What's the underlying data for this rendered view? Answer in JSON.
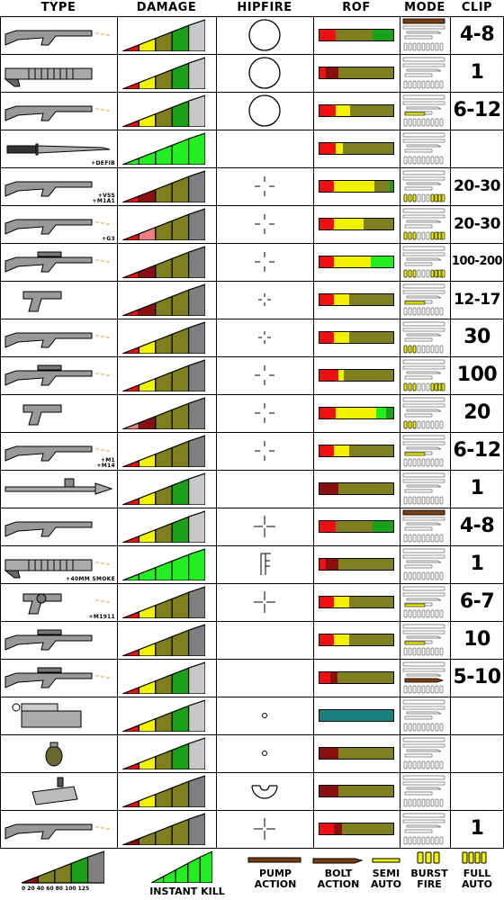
{
  "header": {
    "type": "TYPE",
    "damage": "DAMAGE",
    "hipfire": "HIPFIRE",
    "rof": "ROF",
    "mode": "MODE",
    "clip": "CLIP"
  },
  "colors": {
    "red": "#ee1111",
    "dark_red": "#8a1010",
    "pink": "#f08080",
    "yellow": "#f2f200",
    "olive": "#7f7f1f",
    "green": "#1aa01a",
    "bright_green": "#22ee22",
    "light_green": "#88f088",
    "gray": "#7f7f7f",
    "light_gray": "#c8c8c8",
    "teal": "#1a7f7f",
    "brown": "#7a3f10"
  },
  "rows": [
    {
      "weapon_icon": "shotgun-icon",
      "note": "",
      "damage": [
        "red",
        "yellow",
        "olive",
        "green",
        "light_gray"
      ],
      "hipfire": "large-circle",
      "rof": [
        [
          "red",
          22
        ],
        [
          "olive",
          50
        ],
        [
          "green",
          28
        ]
      ],
      "mode": [
        "pump"
      ],
      "clip": "4-8",
      "clip_size": "big"
    },
    {
      "weapon_icon": "auto-shotgun-icon",
      "note": "",
      "damage": [
        "red",
        "yellow",
        "olive",
        "green",
        "light_gray"
      ],
      "hipfire": "large-circle",
      "rof": [
        [
          "red",
          8
        ],
        [
          "dark_red",
          18
        ],
        [
          "olive",
          74
        ]
      ],
      "mode": [],
      "clip": "1",
      "clip_size": "big"
    },
    {
      "weapon_icon": "combat-shotgun-icon",
      "note": "",
      "damage": [
        "red",
        "yellow",
        "olive",
        "green",
        "light_gray"
      ],
      "hipfire": "large-circle",
      "rof": [
        [
          "red",
          22
        ],
        [
          "yellow",
          20
        ],
        [
          "olive",
          58
        ]
      ],
      "mode": [
        "semi"
      ],
      "clip": "6-12",
      "clip_size": "big"
    },
    {
      "weapon_icon": "knife-icon",
      "note": "+DEFIB",
      "damage": [
        "bright_green",
        "bright_green",
        "bright_green",
        "bright_green",
        "bright_green"
      ],
      "hipfire": "none",
      "rof": [
        [
          "red",
          22
        ],
        [
          "yellow",
          10
        ],
        [
          "olive",
          68
        ]
      ],
      "mode": [],
      "clip": "",
      "clip_size": "big"
    },
    {
      "weapon_icon": "smg-vss-icon",
      "note": "+VSS\n+M1A1",
      "damage": [
        "red",
        "dark_red",
        "olive",
        "olive",
        "gray"
      ],
      "hipfire": "crosshair-wide",
      "rof": [
        [
          "red",
          20
        ],
        [
          "yellow",
          55
        ],
        [
          "olive",
          20
        ],
        [
          "green",
          5
        ]
      ],
      "mode": [
        "full",
        "burst"
      ],
      "clip": "20-30",
      "clip_size": "mid"
    },
    {
      "weapon_icon": "assault-rifle-icon",
      "note": "+G3",
      "damage": [
        "red",
        "pink",
        "olive",
        "olive",
        "gray"
      ],
      "hipfire": "crosshair-wide",
      "rof": [
        [
          "red",
          20
        ],
        [
          "yellow",
          40
        ],
        [
          "olive",
          40
        ]
      ],
      "mode": [
        "full",
        "burst"
      ],
      "clip": "20-30",
      "clip_size": "mid"
    },
    {
      "weapon_icon": "lmg-icon",
      "note": "",
      "damage": [
        "red",
        "dark_red",
        "olive",
        "olive",
        "gray"
      ],
      "hipfire": "crosshair-wide",
      "rof": [
        [
          "red",
          20
        ],
        [
          "yellow",
          50
        ],
        [
          "bright_green",
          30
        ]
      ],
      "mode": [
        "full",
        "burst"
      ],
      "clip": "100-200",
      "clip_size": "small"
    },
    {
      "weapon_icon": "pistol-icon",
      "note": "",
      "damage": [
        "red",
        "dark_red",
        "olive",
        "olive",
        "gray"
      ],
      "hipfire": "crosshair-small",
      "rof": [
        [
          "red",
          20
        ],
        [
          "yellow",
          20
        ],
        [
          "olive",
          60
        ]
      ],
      "mode": [
        "semi"
      ],
      "clip": "12-17",
      "clip_size": "mid"
    },
    {
      "weapon_icon": "m4-rifle-icon",
      "note": "",
      "damage": [
        "red",
        "yellow",
        "olive",
        "olive",
        "gray"
      ],
      "hipfire": "crosshair-small",
      "rof": [
        [
          "red",
          20
        ],
        [
          "yellow",
          20
        ],
        [
          "olive",
          60
        ]
      ],
      "mode": [
        "burst"
      ],
      "clip": "30",
      "clip_size": "big"
    },
    {
      "weapon_icon": "m60-icon",
      "note": "",
      "damage": [
        "red",
        "yellow",
        "olive",
        "olive",
        "gray"
      ],
      "hipfire": "crosshair-wide",
      "rof": [
        [
          "red",
          25
        ],
        [
          "yellow",
          8
        ],
        [
          "olive",
          67
        ]
      ],
      "mode": [
        "full",
        "burst"
      ],
      "clip": "100",
      "clip_size": "big"
    },
    {
      "weapon_icon": "uzi-icon",
      "note": "",
      "damage": [
        "pink",
        "dark_red",
        "olive",
        "olive",
        "gray"
      ],
      "hipfire": "crosshair-wide",
      "rof": [
        [
          "red",
          22
        ],
        [
          "yellow",
          55
        ],
        [
          "bright_green",
          13
        ],
        [
          "green",
          10
        ]
      ],
      "mode": [
        "burst"
      ],
      "clip": "20",
      "clip_size": "big"
    },
    {
      "weapon_icon": "ak-icon",
      "note": "+M1\n+M14",
      "damage": [
        "red",
        "yellow",
        "olive",
        "olive",
        "gray"
      ],
      "hipfire": "crosshair-wide",
      "rof": [
        [
          "red",
          20
        ],
        [
          "yellow",
          20
        ],
        [
          "olive",
          60
        ]
      ],
      "mode": [
        "semi"
      ],
      "clip": "6-12",
      "clip_size": "big"
    },
    {
      "weapon_icon": "rpg-icon",
      "note": "",
      "damage": [
        "red",
        "yellow",
        "olive",
        "green",
        "light_gray"
      ],
      "hipfire": "none",
      "rof": [
        [
          "dark_red",
          25
        ],
        [
          "olive",
          75
        ]
      ],
      "mode": [],
      "clip": "1",
      "clip_size": "big"
    },
    {
      "weapon_icon": "pump-shotgun-icon",
      "note": "",
      "damage": [
        "red",
        "yellow",
        "olive",
        "green",
        "light_gray"
      ],
      "hipfire": "crosshair-cross",
      "rof": [
        [
          "red",
          22
        ],
        [
          "olive",
          50
        ],
        [
          "green",
          28
        ]
      ],
      "mode": [
        "pump"
      ],
      "clip": "4-8",
      "clip_size": "big"
    },
    {
      "weapon_icon": "grenade-launcher-icon",
      "note": "+40MM SMOKE",
      "damage": [
        "bright_green",
        "bright_green",
        "bright_green",
        "bright_green",
        "bright_green"
      ],
      "hipfire": "crosshair-forks",
      "rof": [
        [
          "red",
          8
        ],
        [
          "dark_red",
          18
        ],
        [
          "olive",
          74
        ]
      ],
      "mode": [],
      "clip": "1",
      "clip_size": "big"
    },
    {
      "weapon_icon": "revolver-icon",
      "note": "+M1911",
      "damage": [
        "red",
        "yellow",
        "olive",
        "olive",
        "gray"
      ],
      "hipfire": "crosshair-cross",
      "rof": [
        [
          "red",
          20
        ],
        [
          "yellow",
          20
        ],
        [
          "olive",
          60
        ]
      ],
      "mode": [
        "semi"
      ],
      "clip": "6-7",
      "clip_size": "big"
    },
    {
      "weapon_icon": "dmr-icon",
      "note": "",
      "damage": [
        "red",
        "yellow",
        "olive",
        "olive",
        "gray"
      ],
      "hipfire": "none",
      "rof": [
        [
          "red",
          20
        ],
        [
          "yellow",
          20
        ],
        [
          "olive",
          60
        ]
      ],
      "mode": [
        "semi"
      ],
      "clip": "10",
      "clip_size": "big"
    },
    {
      "weapon_icon": "sniper-icon",
      "note": "",
      "damage": [
        "red",
        "yellow",
        "olive",
        "green",
        "light_gray"
      ],
      "hipfire": "none",
      "rof": [
        [
          "red",
          15
        ],
        [
          "dark_red",
          10
        ],
        [
          "olive",
          75
        ]
      ],
      "mode": [
        "bolt"
      ],
      "clip": "5-10",
      "clip_size": "big"
    },
    {
      "weapon_icon": "c4-icon",
      "note": "",
      "damage": [
        "red",
        "yellow",
        "olive",
        "green",
        "light_gray"
      ],
      "hipfire": "dot",
      "rof": [
        [
          "teal",
          100
        ]
      ],
      "mode": [],
      "clip": "",
      "clip_size": "big"
    },
    {
      "weapon_icon": "frag-grenade-icon",
      "note": "",
      "damage": [
        "red",
        "yellow",
        "olive",
        "green",
        "light_gray"
      ],
      "hipfire": "dot",
      "rof": [
        [
          "dark_red",
          25
        ],
        [
          "olive",
          75
        ]
      ],
      "mode": [],
      "clip": "",
      "clip_size": "big"
    },
    {
      "weapon_icon": "flashbang-icon",
      "note": "",
      "damage": [
        "red",
        "yellow",
        "olive",
        "olive",
        "gray"
      ],
      "hipfire": "arc",
      "rof": [
        [
          "dark_red",
          25
        ],
        [
          "olive",
          75
        ]
      ],
      "mode": [],
      "clip": "",
      "clip_size": "big"
    },
    {
      "weapon_icon": "stake-gun-icon",
      "note": "",
      "damage": [
        "dark_red",
        "olive",
        "olive",
        "olive",
        "gray"
      ],
      "hipfire": "crosshair-cross",
      "rof": [
        [
          "red",
          20
        ],
        [
          "dark_red",
          10
        ],
        [
          "olive",
          70
        ]
      ],
      "mode": [],
      "clip": "1",
      "clip_size": "big"
    }
  ],
  "legend": {
    "scale": "0   20  40   60  80 100  125",
    "instant_kill": "INSTANT KILL",
    "pump": "PUMP\nACTION",
    "bolt": "BOLT\nACTION",
    "semi": "SEMI\nAUTO",
    "burst": "BURST\nFIRE",
    "full": "FULL\nAUTO"
  }
}
